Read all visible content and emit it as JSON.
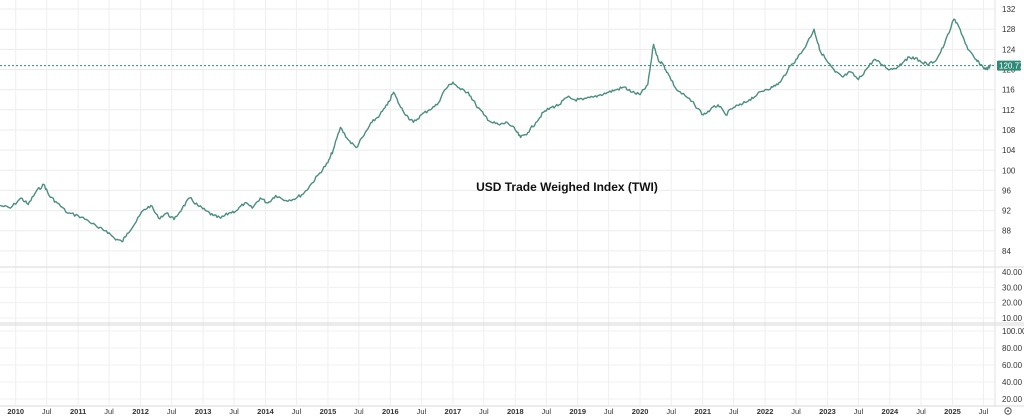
{
  "chart_data": {
    "type": "line",
    "title": "USD Trade Weighed Index (TWI)",
    "color": "#4a8f7f",
    "price_line_color": "#2f8a78",
    "grid": true,
    "last_value": 120.77,
    "last_value_label": "120.77",
    "ylim": [
      81,
      133
    ],
    "y_ticks": [
      84,
      88,
      92,
      96,
      100,
      104,
      108,
      112,
      116,
      120,
      124,
      128,
      132
    ],
    "y_tick_labels": [
      "84",
      "88",
      "92",
      "96",
      "100",
      "104",
      "108",
      "112",
      "116",
      "120",
      "124",
      "128",
      "132"
    ],
    "x_range": [
      "2009-10-01",
      "2025-09-01"
    ],
    "x_ticks": [
      {
        "date": "2010-01-01",
        "label": "2010",
        "year": true
      },
      {
        "date": "2010-07-01",
        "label": "Jul",
        "year": false
      },
      {
        "date": "2011-01-01",
        "label": "2011",
        "year": true
      },
      {
        "date": "2011-07-01",
        "label": "Jul",
        "year": false
      },
      {
        "date": "2012-01-01",
        "label": "2012",
        "year": true
      },
      {
        "date": "2012-07-01",
        "label": "Jul",
        "year": false
      },
      {
        "date": "2013-01-01",
        "label": "2013",
        "year": true
      },
      {
        "date": "2013-07-01",
        "label": "Jul",
        "year": false
      },
      {
        "date": "2014-01-01",
        "label": "2014",
        "year": true
      },
      {
        "date": "2014-07-01",
        "label": "Jul",
        "year": false
      },
      {
        "date": "2015-01-01",
        "label": "2015",
        "year": true
      },
      {
        "date": "2015-07-01",
        "label": "Jul",
        "year": false
      },
      {
        "date": "2016-01-01",
        "label": "2016",
        "year": true
      },
      {
        "date": "2016-07-01",
        "label": "Jul",
        "year": false
      },
      {
        "date": "2017-01-01",
        "label": "2017",
        "year": true
      },
      {
        "date": "2017-07-01",
        "label": "Jul",
        "year": false
      },
      {
        "date": "2018-01-01",
        "label": "2018",
        "year": true
      },
      {
        "date": "2018-07-01",
        "label": "Jul",
        "year": false
      },
      {
        "date": "2019-01-01",
        "label": "2019",
        "year": true
      },
      {
        "date": "2019-07-01",
        "label": "Jul",
        "year": false
      },
      {
        "date": "2020-01-01",
        "label": "2020",
        "year": true
      },
      {
        "date": "2020-07-01",
        "label": "Jul",
        "year": false
      },
      {
        "date": "2021-01-01",
        "label": "2021",
        "year": true
      },
      {
        "date": "2021-07-01",
        "label": "Jul",
        "year": false
      },
      {
        "date": "2022-01-01",
        "label": "2022",
        "year": true
      },
      {
        "date": "2022-07-01",
        "label": "Jul",
        "year": false
      },
      {
        "date": "2023-01-01",
        "label": "2023",
        "year": true
      },
      {
        "date": "2023-07-01",
        "label": "Jul",
        "year": false
      },
      {
        "date": "2024-01-01",
        "label": "2024",
        "year": true
      },
      {
        "date": "2024-07-01",
        "label": "Jul",
        "year": false
      },
      {
        "date": "2025-01-01",
        "label": "2025",
        "year": true
      },
      {
        "date": "2025-07-01",
        "label": "Jul",
        "year": false
      }
    ],
    "panes": [
      {
        "name": "",
        "y_tick_labels": [
          "40.00",
          "30.00",
          "20.00",
          "10.00"
        ]
      },
      {
        "name": "",
        "y_tick_labels": [
          "100.00",
          "80.00",
          "60.00",
          "40.00",
          "20.00"
        ]
      }
    ],
    "points": [
      [
        "2009-10-01",
        93.0
      ],
      [
        "2009-12-01",
        92.5
      ],
      [
        "2010-02-01",
        94.5
      ],
      [
        "2010-03-15",
        93.2
      ],
      [
        "2010-05-01",
        95.8
      ],
      [
        "2010-06-15",
        97.2
      ],
      [
        "2010-07-15",
        95.0
      ],
      [
        "2010-09-01",
        93.5
      ],
      [
        "2010-11-01",
        91.5
      ],
      [
        "2011-01-01",
        91.0
      ],
      [
        "2011-03-01",
        90.0
      ],
      [
        "2011-05-01",
        88.5
      ],
      [
        "2011-06-15",
        88.0
      ],
      [
        "2011-08-01",
        86.5
      ],
      [
        "2011-09-15",
        85.8
      ],
      [
        "2011-10-15",
        87.5
      ],
      [
        "2011-12-01",
        89.5
      ],
      [
        "2012-01-15",
        92.0
      ],
      [
        "2012-03-01",
        93.0
      ],
      [
        "2012-04-15",
        90.5
      ],
      [
        "2012-06-01",
        91.5
      ],
      [
        "2012-07-15",
        90.2
      ],
      [
        "2012-09-01",
        92.5
      ],
      [
        "2012-10-15",
        94.5
      ],
      [
        "2012-12-01",
        93.0
      ],
      [
        "2013-01-15",
        92.0
      ],
      [
        "2013-03-01",
        91.0
      ],
      [
        "2013-04-15",
        90.5
      ],
      [
        "2013-06-01",
        91.5
      ],
      [
        "2013-07-15",
        92.0
      ],
      [
        "2013-09-01",
        93.5
      ],
      [
        "2013-10-15",
        92.5
      ],
      [
        "2013-12-01",
        94.5
      ],
      [
        "2014-01-15",
        93.5
      ],
      [
        "2014-03-01",
        95.0
      ],
      [
        "2014-05-01",
        94.0
      ],
      [
        "2014-07-01",
        94.5
      ],
      [
        "2014-08-15",
        95.5
      ],
      [
        "2014-10-01",
        97.5
      ],
      [
        "2014-11-15",
        99.5
      ],
      [
        "2015-01-01",
        101.5
      ],
      [
        "2015-02-01",
        104.0
      ],
      [
        "2015-03-15",
        108.5
      ],
      [
        "2015-05-01",
        106.0
      ],
      [
        "2015-06-15",
        104.5
      ],
      [
        "2015-08-01",
        107.0
      ],
      [
        "2015-09-15",
        109.5
      ],
      [
        "2015-11-01",
        111.0
      ],
      [
        "2015-12-15",
        113.0
      ],
      [
        "2016-01-20",
        115.5
      ],
      [
        "2016-03-01",
        112.5
      ],
      [
        "2016-04-15",
        110.5
      ],
      [
        "2016-05-15",
        109.5
      ],
      [
        "2016-07-01",
        111.0
      ],
      [
        "2016-08-15",
        112.0
      ],
      [
        "2016-10-01",
        113.0
      ],
      [
        "2016-11-15",
        116.0
      ],
      [
        "2017-01-01",
        117.5
      ],
      [
        "2017-02-15",
        116.0
      ],
      [
        "2017-04-01",
        115.5
      ],
      [
        "2017-05-15",
        113.0
      ],
      [
        "2017-07-01",
        111.0
      ],
      [
        "2017-08-15",
        109.5
      ],
      [
        "2017-10-01",
        109.0
      ],
      [
        "2017-11-15",
        109.5
      ],
      [
        "2018-01-01",
        108.0
      ],
      [
        "2018-02-01",
        106.5
      ],
      [
        "2018-03-15",
        107.5
      ],
      [
        "2018-05-01",
        109.5
      ],
      [
        "2018-06-15",
        111.5
      ],
      [
        "2018-08-01",
        112.5
      ],
      [
        "2018-09-15",
        113.0
      ],
      [
        "2018-11-01",
        114.5
      ],
      [
        "2018-12-15",
        114.0
      ],
      [
        "2019-02-01",
        114.0
      ],
      [
        "2019-04-01",
        114.5
      ],
      [
        "2019-05-15",
        115.0
      ],
      [
        "2019-07-01",
        115.5
      ],
      [
        "2019-08-15",
        116.0
      ],
      [
        "2019-10-01",
        116.5
      ],
      [
        "2019-11-15",
        115.5
      ],
      [
        "2020-01-01",
        115.0
      ],
      [
        "2020-02-15",
        117.0
      ],
      [
        "2020-03-20",
        125.0
      ],
      [
        "2020-04-15",
        122.0
      ],
      [
        "2020-05-15",
        121.0
      ],
      [
        "2020-06-15",
        119.0
      ],
      [
        "2020-08-01",
        116.0
      ],
      [
        "2020-10-01",
        114.5
      ],
      [
        "2020-11-15",
        113.0
      ],
      [
        "2021-01-05",
        111.0
      ],
      [
        "2021-02-15",
        112.0
      ],
      [
        "2021-04-01",
        113.0
      ],
      [
        "2021-05-15",
        111.0
      ],
      [
        "2021-07-01",
        112.5
      ],
      [
        "2021-08-15",
        113.0
      ],
      [
        "2021-10-01",
        114.0
      ],
      [
        "2021-11-15",
        115.0
      ],
      [
        "2022-01-01",
        116.0
      ],
      [
        "2022-02-15",
        116.5
      ],
      [
        "2022-04-01",
        117.5
      ],
      [
        "2022-05-15",
        120.0
      ],
      [
        "2022-07-01",
        122.0
      ],
      [
        "2022-08-15",
        124.0
      ],
      [
        "2022-10-15",
        128.0
      ],
      [
        "2022-11-15",
        124.0
      ],
      [
        "2023-01-01",
        121.5
      ],
      [
        "2023-02-15",
        119.5
      ],
      [
        "2023-04-01",
        118.5
      ],
      [
        "2023-05-15",
        119.5
      ],
      [
        "2023-07-01",
        118.0
      ],
      [
        "2023-08-15",
        120.0
      ],
      [
        "2023-10-01",
        122.0
      ],
      [
        "2023-11-15",
        121.0
      ],
      [
        "2024-01-01",
        120.0
      ],
      [
        "2024-02-15",
        120.5
      ],
      [
        "2024-04-01",
        122.0
      ],
      [
        "2024-05-15",
        122.5
      ],
      [
        "2024-07-01",
        121.5
      ],
      [
        "2024-08-15",
        121.0
      ],
      [
        "2024-10-01",
        122.0
      ],
      [
        "2024-11-15",
        125.0
      ],
      [
        "2025-01-10",
        130.0
      ],
      [
        "2025-02-15",
        128.0
      ],
      [
        "2025-04-01",
        124.0
      ],
      [
        "2025-05-15",
        122.0
      ],
      [
        "2025-06-15",
        121.0
      ],
      [
        "2025-07-15",
        120.0
      ],
      [
        "2025-08-15",
        120.77
      ]
    ]
  }
}
